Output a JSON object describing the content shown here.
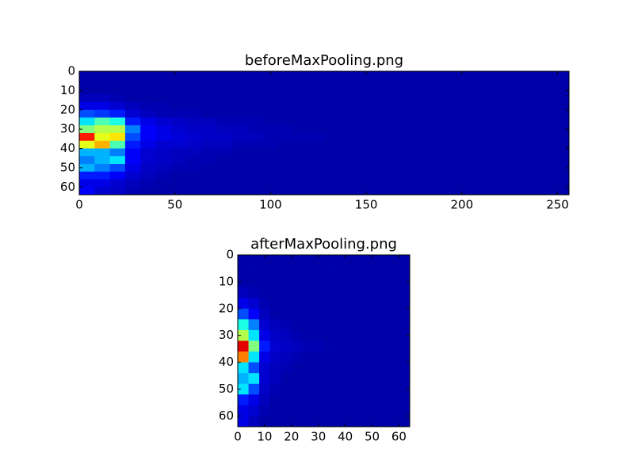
{
  "chart_data": [
    {
      "type": "heatmap",
      "title": "beforeMaxPooling.png",
      "colormap": "jet",
      "vlim": [
        0,
        1
      ],
      "xlim": [
        0,
        256
      ],
      "ylim": [
        64,
        0
      ],
      "xticks": [
        0,
        50,
        100,
        150,
        200,
        250
      ],
      "yticks": [
        0,
        10,
        20,
        30,
        40,
        50,
        60
      ],
      "values": [
        [
          0.04,
          0.04,
          0.04,
          0.04,
          0.04,
          0.04,
          0.04,
          0.04,
          0.04,
          0.04,
          0.04,
          0.04,
          0.04,
          0.04,
          0.04,
          0.04,
          0.04,
          0.04,
          0.04,
          0.04,
          0.04,
          0.04,
          0.04,
          0.04,
          0.04,
          0.04,
          0.04,
          0.04,
          0.04,
          0.04,
          0.04,
          0.04
        ],
        [
          0.04,
          0.04,
          0.04,
          0.04,
          0.04,
          0.04,
          0.04,
          0.04,
          0.04,
          0.04,
          0.04,
          0.04,
          0.04,
          0.04,
          0.04,
          0.04,
          0.04,
          0.04,
          0.04,
          0.04,
          0.04,
          0.04,
          0.04,
          0.04,
          0.04,
          0.04,
          0.04,
          0.04,
          0.04,
          0.04,
          0.04,
          0.04
        ],
        [
          0.04,
          0.04,
          0.04,
          0.04,
          0.04,
          0.04,
          0.04,
          0.04,
          0.04,
          0.04,
          0.04,
          0.04,
          0.04,
          0.04,
          0.04,
          0.04,
          0.04,
          0.04,
          0.04,
          0.04,
          0.04,
          0.04,
          0.04,
          0.04,
          0.04,
          0.04,
          0.04,
          0.04,
          0.04,
          0.04,
          0.04,
          0.04
        ],
        [
          0.06,
          0.06,
          0.05,
          0.04,
          0.04,
          0.04,
          0.04,
          0.04,
          0.04,
          0.04,
          0.04,
          0.04,
          0.04,
          0.04,
          0.04,
          0.04,
          0.04,
          0.04,
          0.04,
          0.04,
          0.04,
          0.04,
          0.04,
          0.04,
          0.04,
          0.04,
          0.04,
          0.04,
          0.04,
          0.04,
          0.04,
          0.04
        ],
        [
          0.1,
          0.1,
          0.08,
          0.06,
          0.05,
          0.05,
          0.04,
          0.04,
          0.04,
          0.04,
          0.04,
          0.04,
          0.04,
          0.04,
          0.04,
          0.04,
          0.04,
          0.04,
          0.04,
          0.04,
          0.04,
          0.04,
          0.04,
          0.04,
          0.04,
          0.04,
          0.04,
          0.04,
          0.04,
          0.04,
          0.04,
          0.04
        ],
        [
          0.2,
          0.18,
          0.15,
          0.08,
          0.06,
          0.05,
          0.05,
          0.05,
          0.04,
          0.04,
          0.04,
          0.04,
          0.04,
          0.04,
          0.04,
          0.04,
          0.04,
          0.04,
          0.04,
          0.04,
          0.04,
          0.04,
          0.04,
          0.04,
          0.04,
          0.04,
          0.04,
          0.04,
          0.04,
          0.04,
          0.04,
          0.04
        ],
        [
          0.35,
          0.45,
          0.4,
          0.15,
          0.1,
          0.08,
          0.07,
          0.06,
          0.06,
          0.05,
          0.05,
          0.05,
          0.04,
          0.04,
          0.04,
          0.04,
          0.04,
          0.04,
          0.04,
          0.04,
          0.04,
          0.04,
          0.04,
          0.04,
          0.04,
          0.04,
          0.04,
          0.04,
          0.04,
          0.04,
          0.04,
          0.04
        ],
        [
          0.5,
          0.55,
          0.55,
          0.25,
          0.12,
          0.1,
          0.08,
          0.07,
          0.07,
          0.06,
          0.06,
          0.05,
          0.05,
          0.05,
          0.04,
          0.04,
          0.04,
          0.04,
          0.04,
          0.04,
          0.04,
          0.04,
          0.04,
          0.04,
          0.04,
          0.04,
          0.04,
          0.04,
          0.04,
          0.04,
          0.04,
          0.04
        ],
        [
          0.85,
          0.6,
          0.65,
          0.2,
          0.12,
          0.1,
          0.09,
          0.08,
          0.07,
          0.07,
          0.06,
          0.06,
          0.05,
          0.05,
          0.05,
          0.05,
          0.04,
          0.04,
          0.04,
          0.04,
          0.04,
          0.04,
          0.04,
          0.04,
          0.04,
          0.04,
          0.04,
          0.04,
          0.04,
          0.04,
          0.04,
          0.04
        ],
        [
          0.6,
          0.7,
          0.45,
          0.15,
          0.1,
          0.08,
          0.08,
          0.07,
          0.06,
          0.06,
          0.05,
          0.05,
          0.05,
          0.04,
          0.04,
          0.04,
          0.04,
          0.04,
          0.04,
          0.04,
          0.04,
          0.04,
          0.04,
          0.04,
          0.04,
          0.04,
          0.04,
          0.04,
          0.04,
          0.04,
          0.04,
          0.04
        ],
        [
          0.3,
          0.3,
          0.25,
          0.12,
          0.08,
          0.07,
          0.06,
          0.06,
          0.05,
          0.05,
          0.04,
          0.04,
          0.04,
          0.04,
          0.04,
          0.04,
          0.04,
          0.04,
          0.04,
          0.04,
          0.04,
          0.04,
          0.04,
          0.04,
          0.04,
          0.04,
          0.04,
          0.04,
          0.04,
          0.04,
          0.04,
          0.04
        ],
        [
          0.25,
          0.3,
          0.35,
          0.12,
          0.08,
          0.07,
          0.06,
          0.05,
          0.05,
          0.04,
          0.04,
          0.04,
          0.04,
          0.04,
          0.04,
          0.04,
          0.04,
          0.04,
          0.04,
          0.04,
          0.04,
          0.04,
          0.04,
          0.04,
          0.04,
          0.04,
          0.04,
          0.04,
          0.04,
          0.04,
          0.04,
          0.04
        ],
        [
          0.3,
          0.25,
          0.2,
          0.1,
          0.07,
          0.06,
          0.05,
          0.05,
          0.04,
          0.04,
          0.04,
          0.04,
          0.04,
          0.04,
          0.04,
          0.04,
          0.04,
          0.04,
          0.04,
          0.04,
          0.04,
          0.04,
          0.04,
          0.04,
          0.04,
          0.04,
          0.04,
          0.04,
          0.04,
          0.04,
          0.04,
          0.04
        ],
        [
          0.15,
          0.15,
          0.12,
          0.08,
          0.06,
          0.05,
          0.04,
          0.04,
          0.04,
          0.04,
          0.04,
          0.04,
          0.04,
          0.04,
          0.04,
          0.04,
          0.04,
          0.04,
          0.04,
          0.04,
          0.04,
          0.04,
          0.04,
          0.04,
          0.04,
          0.04,
          0.04,
          0.04,
          0.04,
          0.04,
          0.04,
          0.04
        ],
        [
          0.1,
          0.1,
          0.08,
          0.06,
          0.05,
          0.04,
          0.04,
          0.04,
          0.04,
          0.04,
          0.04,
          0.04,
          0.04,
          0.04,
          0.04,
          0.04,
          0.04,
          0.04,
          0.04,
          0.04,
          0.04,
          0.04,
          0.04,
          0.04,
          0.04,
          0.04,
          0.04,
          0.04,
          0.04,
          0.04,
          0.04,
          0.04
        ],
        [
          0.12,
          0.08,
          0.07,
          0.05,
          0.04,
          0.04,
          0.04,
          0.04,
          0.04,
          0.04,
          0.04,
          0.04,
          0.04,
          0.04,
          0.04,
          0.04,
          0.04,
          0.04,
          0.04,
          0.04,
          0.04,
          0.04,
          0.04,
          0.04,
          0.04,
          0.04,
          0.04,
          0.04,
          0.04,
          0.04,
          0.04,
          0.04
        ]
      ]
    },
    {
      "type": "heatmap",
      "title": "afterMaxPooling.png",
      "colormap": "jet",
      "vlim": [
        0,
        1
      ],
      "xlim": [
        0,
        64
      ],
      "ylim": [
        64,
        0
      ],
      "xticks": [
        0,
        10,
        20,
        30,
        40,
        50,
        60
      ],
      "yticks": [
        0,
        10,
        20,
        30,
        40,
        50,
        60
      ],
      "values": [
        [
          0.04,
          0.04,
          0.04,
          0.04,
          0.04,
          0.04,
          0.04,
          0.04,
          0.04,
          0.04,
          0.04,
          0.04,
          0.04,
          0.04,
          0.04,
          0.04
        ],
        [
          0.04,
          0.04,
          0.04,
          0.04,
          0.04,
          0.04,
          0.04,
          0.04,
          0.04,
          0.04,
          0.04,
          0.04,
          0.04,
          0.04,
          0.04,
          0.04
        ],
        [
          0.04,
          0.04,
          0.04,
          0.04,
          0.04,
          0.04,
          0.04,
          0.04,
          0.04,
          0.04,
          0.04,
          0.04,
          0.04,
          0.04,
          0.04,
          0.04
        ],
        [
          0.06,
          0.05,
          0.04,
          0.04,
          0.04,
          0.04,
          0.04,
          0.04,
          0.04,
          0.04,
          0.04,
          0.04,
          0.04,
          0.04,
          0.04,
          0.04
        ],
        [
          0.1,
          0.08,
          0.05,
          0.04,
          0.04,
          0.04,
          0.04,
          0.04,
          0.04,
          0.04,
          0.04,
          0.04,
          0.04,
          0.04,
          0.04,
          0.04
        ],
        [
          0.2,
          0.12,
          0.06,
          0.04,
          0.04,
          0.04,
          0.04,
          0.04,
          0.04,
          0.04,
          0.04,
          0.04,
          0.04,
          0.04,
          0.04,
          0.04
        ],
        [
          0.4,
          0.25,
          0.08,
          0.06,
          0.05,
          0.04,
          0.04,
          0.04,
          0.04,
          0.04,
          0.04,
          0.04,
          0.04,
          0.04,
          0.04,
          0.04
        ],
        [
          0.55,
          0.35,
          0.1,
          0.07,
          0.06,
          0.05,
          0.04,
          0.04,
          0.04,
          0.04,
          0.04,
          0.04,
          0.04,
          0.04,
          0.04,
          0.04
        ],
        [
          0.9,
          0.5,
          0.15,
          0.08,
          0.07,
          0.06,
          0.05,
          0.05,
          0.04,
          0.04,
          0.04,
          0.04,
          0.04,
          0.04,
          0.04,
          0.04
        ],
        [
          0.75,
          0.35,
          0.1,
          0.07,
          0.06,
          0.05,
          0.04,
          0.04,
          0.04,
          0.04,
          0.04,
          0.04,
          0.04,
          0.04,
          0.04,
          0.04
        ],
        [
          0.35,
          0.2,
          0.08,
          0.06,
          0.05,
          0.04,
          0.04,
          0.04,
          0.04,
          0.04,
          0.04,
          0.04,
          0.04,
          0.04,
          0.04,
          0.04
        ],
        [
          0.3,
          0.35,
          0.08,
          0.06,
          0.04,
          0.04,
          0.04,
          0.04,
          0.04,
          0.04,
          0.04,
          0.04,
          0.04,
          0.04,
          0.04,
          0.04
        ],
        [
          0.35,
          0.2,
          0.07,
          0.05,
          0.04,
          0.04,
          0.04,
          0.04,
          0.04,
          0.04,
          0.04,
          0.04,
          0.04,
          0.04,
          0.04,
          0.04
        ],
        [
          0.15,
          0.1,
          0.06,
          0.04,
          0.04,
          0.04,
          0.04,
          0.04,
          0.04,
          0.04,
          0.04,
          0.04,
          0.04,
          0.04,
          0.04,
          0.04
        ],
        [
          0.1,
          0.08,
          0.05,
          0.04,
          0.04,
          0.04,
          0.04,
          0.04,
          0.04,
          0.04,
          0.04,
          0.04,
          0.04,
          0.04,
          0.04,
          0.04
        ],
        [
          0.1,
          0.06,
          0.04,
          0.04,
          0.04,
          0.04,
          0.04,
          0.04,
          0.04,
          0.04,
          0.04,
          0.04,
          0.04,
          0.04,
          0.04,
          0.04
        ]
      ]
    }
  ]
}
